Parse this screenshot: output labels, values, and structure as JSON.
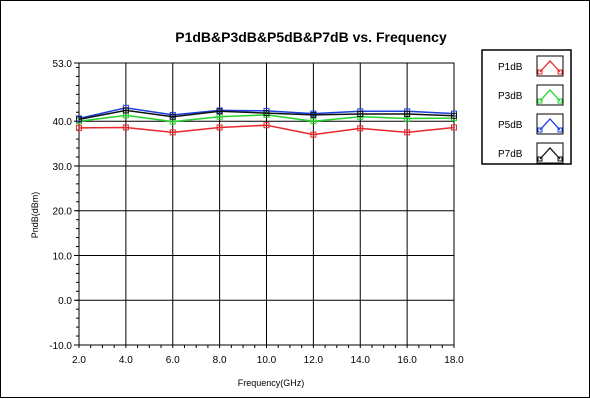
{
  "chart_data": {
    "type": "line",
    "title": "P1dB&P3dB&P5dB&P7dB vs. Frequency",
    "xlabel": "Frequency(GHz)",
    "ylabel": "PndB(dBm)",
    "x": [
      2.0,
      4.0,
      6.0,
      8.0,
      10.0,
      12.0,
      14.0,
      16.0,
      18.0
    ],
    "xticks": [
      "2.0",
      "4.0",
      "6.0",
      "8.0",
      "10.0",
      "12.0",
      "14.0",
      "16.0",
      "18.0"
    ],
    "xlim": [
      2.0,
      18.0
    ],
    "ylim": [
      -10.0,
      53.0
    ],
    "yticks": [
      {
        "value": 53.0,
        "label": "53.0"
      },
      {
        "value": 40.0,
        "label": "40.0"
      },
      {
        "value": 30.0,
        "label": "30.0"
      },
      {
        "value": 20.0,
        "label": "20.0"
      },
      {
        "value": 10.0,
        "label": "10.0"
      },
      {
        "value": 0.0,
        "label": "0.0"
      },
      {
        "value": -10.0,
        "label": "-10.0"
      }
    ],
    "grid": true,
    "legend_position": "top-right",
    "series": [
      {
        "name": "P1dB",
        "color": "#e8262b",
        "values": [
          38.5,
          38.6,
          37.5,
          38.6,
          39.1,
          37.0,
          38.4,
          37.5,
          38.6
        ]
      },
      {
        "name": "P3dB",
        "color": "#22d42a",
        "values": [
          40.0,
          41.3,
          39.9,
          41.0,
          41.4,
          40.0,
          41.0,
          40.6,
          40.7
        ]
      },
      {
        "name": "P5dB",
        "color": "#1c3fe0",
        "values": [
          40.6,
          43.0,
          41.4,
          42.4,
          42.3,
          41.7,
          42.2,
          42.2,
          41.7
        ]
      },
      {
        "name": "P7dB",
        "color": "#111111",
        "values": [
          40.4,
          42.4,
          41.0,
          42.2,
          41.8,
          41.4,
          41.6,
          41.6,
          41.2
        ]
      }
    ]
  }
}
